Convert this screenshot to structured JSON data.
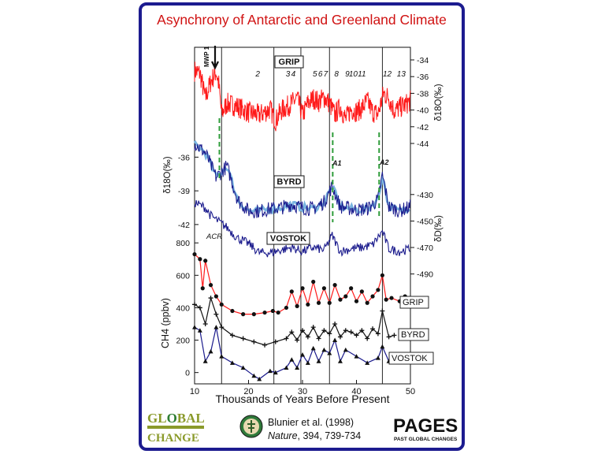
{
  "slide": {
    "title": "Asynchrony of Antarctic and Greenland Climate",
    "citation": {
      "authors": "Blunier et al. (1998)",
      "journal": "Nature",
      "ref": ", 394, 739-734"
    },
    "logos": {
      "global_change_top": "GL",
      "global_change_o": "O",
      "global_change_bal": "BAL",
      "global_change_bottom": "CHANGE",
      "pages_main": "PAGES",
      "pages_sub": "PAST GLOBAL CHANGES"
    }
  },
  "chart_data": {
    "type": "line",
    "xlabel": "Thousands of Years Before Present",
    "xlim": [
      10,
      50
    ],
    "xticks": [
      10,
      20,
      30,
      40,
      50
    ],
    "event_lines_x": [
      15.0,
      24.7,
      29.7,
      35.0,
      44.8
    ],
    "dashed_lines_x": [
      14.6,
      35.6,
      44.2
    ],
    "colors": {
      "grip": "#ff1a1a",
      "byrd": "#1a1a8c",
      "byrd_light": "#79b4e0",
      "vostok": "#1a1a8c",
      "dashed": "#2e9c3a",
      "frame": "#1c1b8f",
      "title": "#d01212"
    },
    "annotations": {
      "mwp": "MWP 1",
      "acr": "ACR",
      "a1": "A1",
      "a2": "A2",
      "interstadials": [
        {
          "label": "2",
          "x": 21.7
        },
        {
          "label": "3",
          "x": 27.3
        },
        {
          "label": "4",
          "x": 28.3
        },
        {
          "label": "5",
          "x": 32.3
        },
        {
          "label": "6",
          "x": 33.3
        },
        {
          "label": "7",
          "x": 34.3
        },
        {
          "label": "8",
          "x": 36.3
        },
        {
          "label": "9",
          "x": 38.3
        },
        {
          "label": "10",
          "x": 39.4
        },
        {
          "label": "11",
          "x": 41.0
        },
        {
          "label": "12",
          "x": 45.7
        },
        {
          "label": "13",
          "x": 48.3
        }
      ]
    },
    "panels": {
      "grip_d18o": {
        "label": "GRIP",
        "axis_label": "δ18O(‰)",
        "ylim": [
          -44,
          -34
        ],
        "yticks": [
          -34,
          -36,
          -38,
          -40,
          -42,
          -44
        ],
        "series": [
          {
            "name": "GRIP",
            "x": [
              10.0,
              11.0,
              12.0,
              13.0,
              14.0,
              14.5,
              15.0,
              16.0,
              18.0,
              20.0,
              22.0,
              24.0,
              25.0,
              26.0,
              28.0,
              29.0,
              30.0,
              31.0,
              32.0,
              33.0,
              34.0,
              35.0,
              36.0,
              37.0,
              38.0,
              39.0,
              40.0,
              41.0,
              42.0,
              43.0,
              44.0,
              45.0,
              46.0,
              47.0,
              48.0,
              49.0,
              50.0
            ],
            "values": [
              -35.3,
              -35.6,
              -38.6,
              -36.6,
              -35.4,
              -37.0,
              -40.5,
              -39.2,
              -39.6,
              -40.3,
              -40.6,
              -39.9,
              -41.3,
              -40.1,
              -39.2,
              -38.6,
              -40.6,
              -39.2,
              -38.6,
              -39.0,
              -38.5,
              -39.2,
              -40.6,
              -39.6,
              -41.1,
              -39.9,
              -40.2,
              -39.8,
              -38.9,
              -40.2,
              -40.5,
              -38.0,
              -38.5,
              -40.1,
              -39.7,
              -39.4,
              -38.9
            ]
          }
        ]
      },
      "byrd_d18o": {
        "label": "BYRD",
        "axis_label": "δ18O(‰)",
        "ylim": [
          -42.5,
          -34.5
        ],
        "yticks": [
          -36,
          -39,
          -42
        ],
        "series": [
          {
            "name": "BYRD",
            "x": [
              10.0,
              12.0,
              14.0,
              16.0,
              18.0,
              20.0,
              22.0,
              24.0,
              26.0,
              28.0,
              30.0,
              32.0,
              34.0,
              35.5,
              37.0,
              38.0,
              40.0,
              42.0,
              44.0,
              44.8,
              46.0,
              48.0,
              50.0
            ],
            "values": [
              -34.8,
              -35.6,
              -37.8,
              -36.8,
              -39.8,
              -40.8,
              -40.8,
              -40.6,
              -40.5,
              -40.2,
              -40.5,
              -40.6,
              -40.0,
              -38.6,
              -40.4,
              -40.5,
              -40.7,
              -40.6,
              -39.8,
              -37.6,
              -40.4,
              -40.8,
              -40.4
            ]
          }
        ]
      },
      "vostok_dd": {
        "label": "VOSTOK",
        "axis_label": "δD(‰)",
        "ylim": [
          -495,
          -420
        ],
        "yticks": [
          -430,
          -450,
          -470,
          -490
        ],
        "series": [
          {
            "name": "VOSTOK",
            "x": [
              10.0,
              12.0,
              13.0,
              14.0,
              16.0,
              18.0,
              20.0,
              22.0,
              24.0,
              26.0,
              28.0,
              30.0,
              32.0,
              34.0,
              35.5,
              37.0,
              39.0,
              41.0,
              43.0,
              44.8,
              46.0,
              48.0,
              50.0
            ],
            "values": [
              -436,
              -440,
              -446,
              -449,
              -455,
              -463,
              -467,
              -474,
              -474,
              -472,
              -470,
              -473,
              -470,
              -472,
              -461,
              -473,
              -471,
              -470,
              -468,
              -458,
              -471,
              -473,
              -471
            ]
          }
        ]
      },
      "ch4": {
        "axis_label": "CH4 (ppbv)",
        "ylim": [
          -60,
          830
        ],
        "yticks": [
          0,
          200,
          400,
          600,
          800
        ],
        "series": [
          {
            "name": "GRIP",
            "x": [
              10.0,
              11.0,
              11.5,
              12.0,
              13.0,
              14.0,
              15.0,
              17.0,
              19.0,
              21.0,
              23.0,
              24.5,
              25.5,
              27.0,
              28.0,
              29.0,
              30.0,
              31.0,
              32.0,
              33.0,
              34.0,
              35.0,
              36.0,
              37.0,
              38.0,
              39.0,
              40.0,
              41.0,
              42.0,
              43.0,
              44.0,
              44.8,
              45.5,
              46.5,
              48.0,
              49.0
            ],
            "values": [
              730,
              700,
              520,
              690,
              540,
              470,
              420,
              380,
              360,
              360,
              370,
              380,
              370,
              400,
              500,
              410,
              520,
              420,
              560,
              430,
              520,
              430,
              540,
              450,
              470,
              520,
              440,
              500,
              430,
              470,
              510,
              600,
              450,
              460,
              440,
              470
            ]
          },
          {
            "name": "BYRD",
            "x": [
              10.0,
              11.0,
              12.0,
              13.0,
              14.0,
              15.0,
              17.0,
              19.0,
              21.0,
              23.0,
              25.0,
              27.0,
              28.0,
              29.0,
              30.0,
              31.0,
              32.0,
              33.0,
              34.0,
              35.0,
              36.0,
              37.0,
              38.0,
              39.0,
              40.0,
              41.0,
              42.0,
              43.0,
              44.0,
              44.8,
              46.0,
              47.0
            ],
            "values": [
              420,
              400,
              300,
              460,
              360,
              280,
              230,
              210,
              190,
              170,
              190,
              210,
              250,
              200,
              260,
              220,
              280,
              210,
              260,
              240,
              300,
              220,
              260,
              250,
              230,
              260,
              210,
              270,
              240,
              380,
              220,
              230
            ]
          },
          {
            "name": "VOSTOK",
            "x": [
              10.0,
              11.0,
              12.0,
              13.0,
              14.0,
              15.0,
              17.0,
              19.0,
              21.0,
              22.0,
              24.0,
              25.0,
              27.0,
              28.0,
              29.0,
              30.0,
              31.0,
              32.0,
              33.0,
              34.0,
              35.0,
              36.0,
              37.0,
              38.0,
              40.0,
              42.0,
              44.0,
              44.8,
              46.0,
              47.5
            ],
            "values": [
              280,
              260,
              70,
              130,
              280,
              100,
              60,
              30,
              -20,
              -40,
              10,
              0,
              30,
              80,
              30,
              110,
              60,
              150,
              70,
              140,
              120,
              200,
              70,
              140,
              100,
              60,
              90,
              160,
              70,
              80
            ]
          }
        ]
      }
    }
  }
}
